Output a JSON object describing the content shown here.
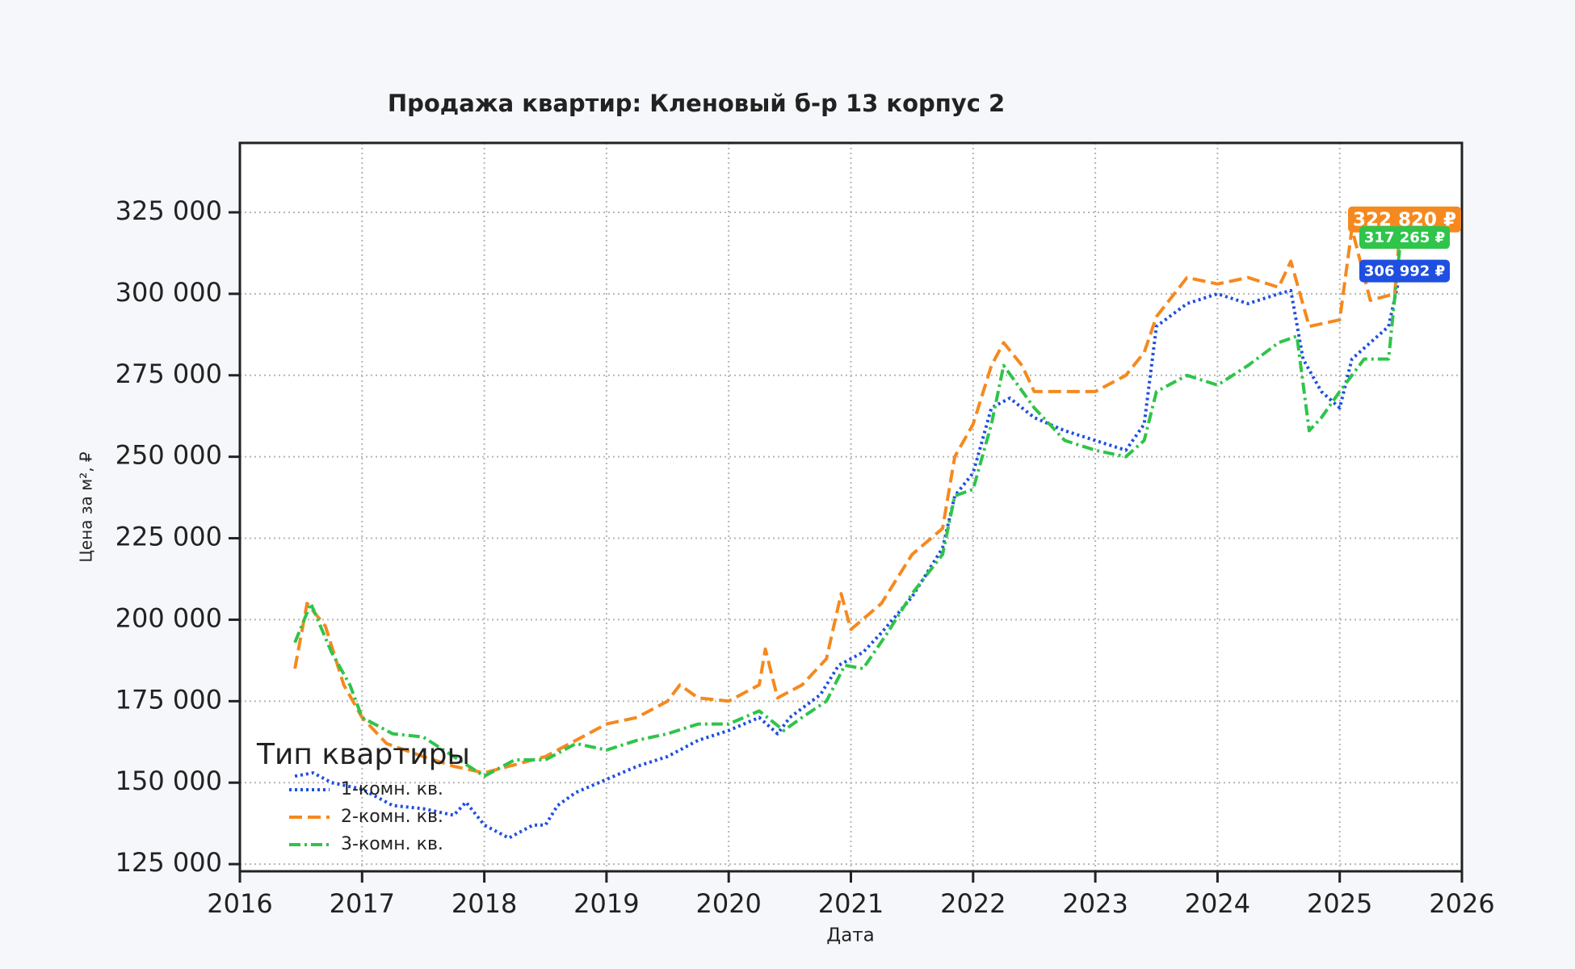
{
  "chart_data": {
    "type": "line",
    "title": "Продажа квартир: Кленовый б-р 13 корпус 2",
    "x_label": "Дата",
    "y_label": "Цена за м², ₽",
    "legend_title": "Тип квартиры",
    "legend": "lower left",
    "grid": true,
    "xlim": [
      2016,
      2026
    ],
    "xticks": [
      2016,
      2017,
      2018,
      2019,
      2020,
      2021,
      2022,
      2023,
      2024,
      2025,
      2026
    ],
    "ylim": [
      122800,
      346300
    ],
    "yticks": [
      {
        "value": 125000,
        "label": "125 000"
      },
      {
        "value": 150000,
        "label": "150 000"
      },
      {
        "value": 175000,
        "label": "175 000"
      },
      {
        "value": 200000,
        "label": "200 000"
      },
      {
        "value": 225000,
        "label": "225 000"
      },
      {
        "value": 250000,
        "label": "250 000"
      },
      {
        "value": 275000,
        "label": "275 000"
      },
      {
        "value": 300000,
        "label": "300 000"
      },
      {
        "value": 325000,
        "label": "325 000"
      }
    ],
    "series": [
      {
        "name": "1-комн. кв.",
        "color": "#1f4fe0",
        "style": "dotted",
        "x": [
          2016.45,
          2016.6,
          2016.75,
          2017.0,
          2017.25,
          2017.5,
          2017.75,
          2017.85,
          2018.0,
          2018.2,
          2018.4,
          2018.5,
          2018.6,
          2018.75,
          2019.0,
          2019.25,
          2019.5,
          2019.75,
          2020.0,
          2020.25,
          2020.4,
          2020.5,
          2020.75,
          2020.9,
          2021.1,
          2021.25,
          2021.5,
          2021.75,
          2021.85,
          2022.0,
          2022.15,
          2022.3,
          2022.5,
          2022.75,
          2023.0,
          2023.25,
          2023.4,
          2023.5,
          2023.75,
          2024.0,
          2024.25,
          2024.5,
          2024.6,
          2024.7,
          2024.85,
          2025.0,
          2025.1,
          2025.25,
          2025.4,
          2025.5
        ],
        "values": [
          152000,
          153000,
          150000,
          148000,
          143000,
          142000,
          140000,
          144000,
          137000,
          133000,
          137000,
          137000,
          143000,
          147000,
          151000,
          155000,
          158000,
          163000,
          166000,
          170000,
          165000,
          170000,
          177000,
          186000,
          190000,
          196000,
          207000,
          222000,
          238000,
          245000,
          265000,
          268000,
          262000,
          258000,
          255000,
          252000,
          260000,
          290000,
          297000,
          300000,
          297000,
          300000,
          301000,
          280000,
          270000,
          265000,
          280000,
          285000,
          290000,
          306992
        ],
        "value_labels": [
          null,
          null,
          null,
          null,
          null,
          null,
          null,
          null,
          null,
          null,
          null,
          null,
          null,
          null,
          null,
          null,
          null,
          null,
          null,
          null,
          null,
          null,
          null,
          null,
          null,
          null,
          null,
          null,
          null,
          null,
          null,
          null,
          null,
          null,
          null,
          null,
          null,
          null,
          null,
          null,
          null,
          null,
          null,
          null,
          null,
          null,
          null,
          null,
          null,
          "306 992 ₽"
        ]
      },
      {
        "name": "2-комн. кв.",
        "color": "#f5891f",
        "style": "dashed",
        "x": [
          2016.45,
          2016.55,
          2016.7,
          2016.85,
          2017.0,
          2017.2,
          2017.5,
          2017.75,
          2018.0,
          2018.2,
          2018.5,
          2018.75,
          2019.0,
          2019.25,
          2019.5,
          2019.6,
          2019.75,
          2020.0,
          2020.25,
          2020.3,
          2020.4,
          2020.6,
          2020.8,
          2020.92,
          2021.0,
          2021.25,
          2021.5,
          2021.75,
          2021.85,
          2022.0,
          2022.15,
          2022.25,
          2022.4,
          2022.5,
          2022.75,
          2023.0,
          2023.25,
          2023.4,
          2023.5,
          2023.75,
          2024.0,
          2024.25,
          2024.5,
          2024.6,
          2024.75,
          2025.0,
          2025.1,
          2025.25,
          2025.45,
          2025.5
        ],
        "values": [
          185000,
          205000,
          198000,
          180000,
          170000,
          162000,
          158000,
          155000,
          153000,
          155000,
          158000,
          163000,
          168000,
          170000,
          175000,
          180000,
          176000,
          175000,
          180000,
          191000,
          176000,
          180000,
          188000,
          208000,
          197000,
          205000,
          220000,
          228000,
          250000,
          260000,
          278000,
          285000,
          278000,
          270000,
          270000,
          270000,
          275000,
          282000,
          293000,
          305000,
          303000,
          305000,
          302000,
          310000,
          290000,
          292000,
          320000,
          298000,
          300000,
          322820
        ],
        "value_labels": [
          null,
          null,
          null,
          null,
          null,
          null,
          null,
          null,
          null,
          null,
          null,
          null,
          null,
          null,
          null,
          null,
          null,
          null,
          null,
          null,
          null,
          null,
          null,
          null,
          null,
          null,
          null,
          null,
          null,
          null,
          null,
          null,
          null,
          null,
          null,
          null,
          null,
          null,
          null,
          null,
          null,
          null,
          null,
          null,
          null,
          null,
          null,
          null,
          null,
          "322 820 ₽"
        ]
      },
      {
        "name": "3-комн. кв.",
        "color": "#2fc44a",
        "style": "dashdot",
        "x": [
          2016.45,
          2016.58,
          2016.75,
          2016.9,
          2017.0,
          2017.25,
          2017.5,
          2017.75,
          2018.0,
          2018.25,
          2018.5,
          2018.75,
          2019.0,
          2019.25,
          2019.5,
          2019.75,
          2020.0,
          2020.25,
          2020.45,
          2020.6,
          2020.8,
          2020.95,
          2021.1,
          2021.3,
          2021.5,
          2021.75,
          2021.85,
          2022.0,
          2022.15,
          2022.25,
          2022.5,
          2022.75,
          2023.0,
          2023.25,
          2023.4,
          2023.5,
          2023.75,
          2024.0,
          2024.25,
          2024.5,
          2024.65,
          2024.75,
          2024.85,
          2025.0,
          2025.2,
          2025.4,
          2025.5
        ],
        "values": [
          193000,
          205000,
          190000,
          180000,
          170000,
          165000,
          164000,
          158000,
          152000,
          157000,
          157000,
          162000,
          160000,
          163000,
          165000,
          168000,
          168000,
          172000,
          166000,
          170000,
          175000,
          186000,
          185000,
          196000,
          208000,
          220000,
          238000,
          240000,
          260000,
          278000,
          265000,
          255000,
          252000,
          250000,
          255000,
          270000,
          275000,
          272000,
          278000,
          285000,
          287000,
          258000,
          262000,
          270000,
          280000,
          280000,
          317265
        ],
        "value_labels": [
          null,
          null,
          null,
          null,
          null,
          null,
          null,
          null,
          null,
          null,
          null,
          null,
          null,
          null,
          null,
          null,
          null,
          null,
          null,
          null,
          null,
          null,
          null,
          null,
          null,
          null,
          null,
          null,
          null,
          null,
          null,
          null,
          null,
          null,
          null,
          null,
          null,
          null,
          null,
          null,
          null,
          null,
          null,
          null,
          null,
          null,
          "317 265 ₽"
        ]
      }
    ]
  }
}
